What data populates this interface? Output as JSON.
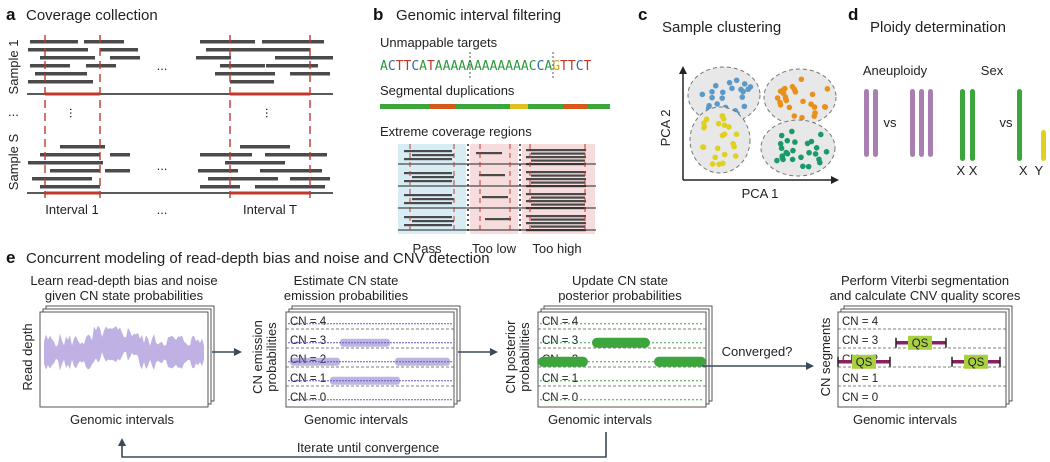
{
  "panels": {
    "a": {
      "letter": "a",
      "title": "Coverage collection",
      "sample1": "Sample 1",
      "sampleS": "Sample S",
      "dots_h": "...",
      "dots_v": "...",
      "interval1": "Interval 1",
      "intervalT": "Interval T"
    },
    "b": {
      "letter": "b",
      "title": "Genomic interval filtering",
      "unmappable": "Unmappable targets",
      "sequence": "ACTTCATAAAAAAAAAAAACCAGTTCT",
      "segdup": "Segmental duplications",
      "extreme": "Extreme coverage regions",
      "pass": "Pass",
      "too_low": "Too low",
      "too_high": "Too high"
    },
    "c": {
      "letter": "c",
      "title": "Sample clustering",
      "pca2": "PCA 2",
      "pca1": "PCA 1"
    },
    "d": {
      "letter": "d",
      "title": "Ploidy determination",
      "aneuploidy": "Aneuploidy",
      "sex": "Sex",
      "vs1": "vs",
      "vs2": "vs",
      "xx": "X X",
      "xy": "X  Y"
    },
    "e": {
      "letter": "e",
      "title": "Concurrent modeling of read-depth bias and noise and CNV detection",
      "step1_line1": "Learn read-depth bias and noise",
      "step1_line2": "given CN state probabilities",
      "step2_line1": "Estimate CN state",
      "step2_line2": "emission probabilities",
      "step3_line1": "Update CN state",
      "step3_line2": "posterior probabilities",
      "step4_line1": "Perform Viterbi segmentation",
      "step4_line2": "and calculate CNV quality scores",
      "ylabel1": "Read depth",
      "ylabel2_line1": "CN emission",
      "ylabel2_line2": "probabilities",
      "ylabel3_line1": "CN posterior",
      "ylabel3_line2": "probabilities",
      "ylabel4": "CN segments",
      "xlabel": "Genomic intervals",
      "converged": "Converged?",
      "iterate": "Iterate until convergence",
      "qs": "QS",
      "cn_states": [
        "CN = 4",
        "CN = 3",
        "CN = 2",
        "CN = 1",
        "CN = 0"
      ]
    }
  },
  "colors": {
    "read": "#4a4a4a",
    "dashed": "#c0392b",
    "purple": "#a87fb0",
    "green": "#3ca53c",
    "yellow": "#e0d020",
    "orange": "#e8901a",
    "blue": "#5a9ac8",
    "teal": "#1a9a6a",
    "lavender": "#b8a8e0",
    "emission": "#6a5ac0",
    "segment": "#8a2060",
    "qs": "#a8d040"
  }
}
